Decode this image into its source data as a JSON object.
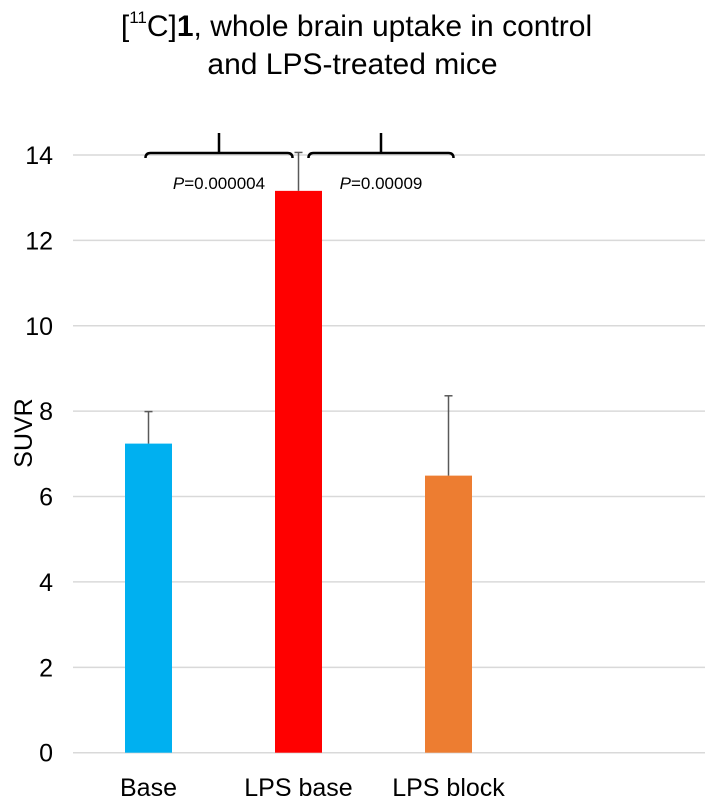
{
  "chart_data": {
    "type": "bar",
    "title": {
      "open_bracket": "[",
      "superscript": "11",
      "isotope_rest": "C]",
      "compound_bold": "1",
      "line1_rest": ", whole brain uptake in control",
      "line2": "and LPS-treated mice"
    },
    "xlabel": "",
    "ylabel": "SUVR",
    "ylim": [
      0,
      14
    ],
    "yticks": [
      0,
      2,
      4,
      6,
      8,
      10,
      12,
      14
    ],
    "ytick_labels": [
      "0",
      "2",
      "4",
      "6",
      "8",
      "10",
      "12",
      "14"
    ],
    "grid": true,
    "categories": [
      "Base",
      "LPS base",
      "LPS block"
    ],
    "values": [
      7.24,
      13.16,
      6.49
    ],
    "error_upper": [
      0.75,
      0.9,
      1.87
    ],
    "colors": [
      "#00B0F0",
      "#FF0000",
      "#ED7D31"
    ],
    "annotations": [
      {
        "from": "Base",
        "to": "LPS base",
        "p_symbol": "P",
        "p_value": "=0.000004"
      },
      {
        "from": "LPS base",
        "to": "LPS block",
        "p_symbol": "P",
        "p_value": "=0.00009"
      }
    ]
  }
}
